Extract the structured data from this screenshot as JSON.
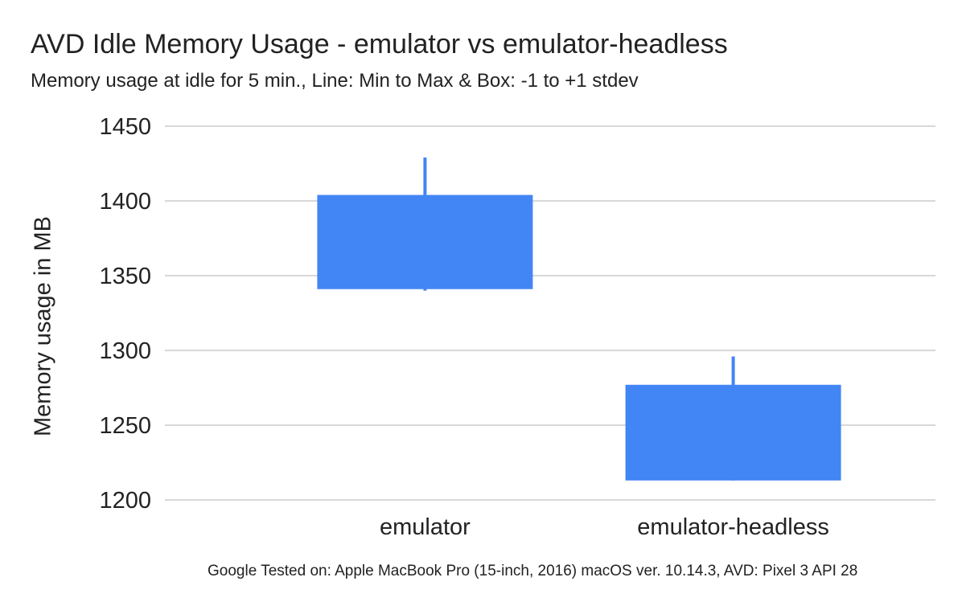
{
  "chart_data": {
    "type": "candlestick",
    "title": "AVD Idle Memory Usage - emulator vs emulator-headless",
    "subtitle": "Memory usage at idle for 5 min., Line: Min to Max & Box: -1 to +1 stdev",
    "xlabel": "",
    "ylabel": "Memory usage in MB",
    "footnote": "Google Tested on: Apple MacBook Pro (15-inch, 2016) macOS ver. 10.14.3, AVD: Pixel 3 API 28",
    "ylim": [
      1200,
      1450
    ],
    "yticks": [
      1200,
      1250,
      1300,
      1350,
      1400,
      1450
    ],
    "grid": true,
    "legend": "none",
    "color": "#4285f4",
    "categories": [
      "emulator",
      "emulator-headless"
    ],
    "series": [
      {
        "values": [
          {
            "low": 1340,
            "box_low": 1341,
            "box_high": 1404,
            "high": 1429
          },
          {
            "low": 1213,
            "box_low": 1213,
            "box_high": 1277,
            "high": 1296
          }
        ]
      }
    ]
  }
}
